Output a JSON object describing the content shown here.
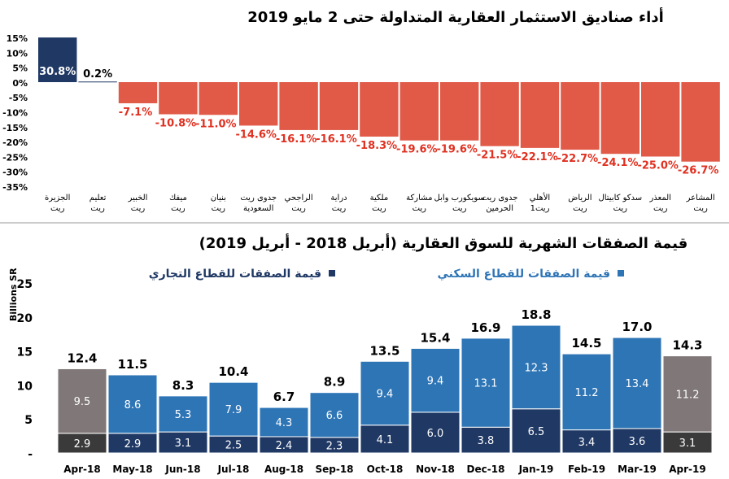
{
  "chart_data": [
    {
      "type": "bar",
      "title": "أداء صناديق الاستثمار العقارية المتداولة حتى 2 مايو 2019",
      "categories": [
        "الجزيرة ريت",
        "تعليم ريت",
        "الخبير ريت",
        "ميفك ريت",
        "بنيان ريت",
        "جدوى ريت السعودية",
        "الراجحي ريت",
        "دراية ريت",
        "ملكية ريت",
        "مشاركة ريت",
        "سويكورب وابل ريت",
        "جدوى ريت الحرمين",
        "الأهلي ريت1",
        "الرياض ريت",
        "سدكو كابيتال ريت",
        "المعذر ريت",
        "المشاعر ريت"
      ],
      "values": [
        30.8,
        0.2,
        -7.1,
        -10.8,
        -11.0,
        -14.6,
        -16.1,
        -16.1,
        -18.3,
        -19.6,
        -19.6,
        -21.5,
        -22.1,
        -22.7,
        -24.1,
        -25.0,
        -26.7
      ],
      "data_labels": [
        "30.8%",
        "0.2%",
        "-7.1%",
        "-10.8%",
        "-11.0%",
        "-14.6%",
        "-16.1%",
        "-16.1%",
        "-18.3%",
        "-19.6%",
        "-19.6%",
        "-21.5%",
        "-22.1%",
        "-22.7%",
        "-24.1%",
        "-25.0%",
        "-26.7%"
      ],
      "ylim": [
        -35,
        15
      ],
      "yticks": [
        "15%",
        "10%",
        "5%",
        "0%",
        "-5%",
        "-10%",
        "-15%",
        "-20%",
        "-25%",
        "-30%",
        "-35%"
      ],
      "colors": {
        "positive": "#1f3864",
        "negative": "#e05a47"
      }
    },
    {
      "type": "bar",
      "stacked": true,
      "title": "قيمة الصفقات الشهرية للسوق العقارية (أبريل 2018 - أبريل 2019)",
      "ylabel": "Billions SR",
      "ylim": [
        0,
        25
      ],
      "yticks": [
        "25",
        "20",
        "15",
        "10",
        "5",
        "-"
      ],
      "categories": [
        "Apr-18",
        "May-18",
        "Jun-18",
        "Jul-18",
        "Aug-18",
        "Sep-18",
        "Oct-18",
        "Nov-18",
        "Dec-18",
        "Jan-19",
        "Feb-19",
        "Mar-19",
        "Apr-19"
      ],
      "series": [
        {
          "name": "قيمة الصفقات للقطاع التجاري",
          "values": [
            2.9,
            2.9,
            3.1,
            2.5,
            2.4,
            2.3,
            4.1,
            6.0,
            3.8,
            6.5,
            3.4,
            3.6,
            3.1
          ],
          "color": "#1f3864"
        },
        {
          "name": "قيمة الصفقات للقطاع السكني",
          "values": [
            9.5,
            8.6,
            5.3,
            7.9,
            4.3,
            6.6,
            9.4,
            9.4,
            13.1,
            12.3,
            11.2,
            13.4,
            11.2
          ],
          "color": "#2e75b6"
        }
      ],
      "totals": [
        12.4,
        11.5,
        8.3,
        10.4,
        6.7,
        8.9,
        13.5,
        15.4,
        16.9,
        18.8,
        14.5,
        17.0,
        14.3
      ],
      "highlight_color": {
        "residential": "#7f7778",
        "commercial": "#3a3a3a"
      },
      "legend": "top"
    }
  ]
}
